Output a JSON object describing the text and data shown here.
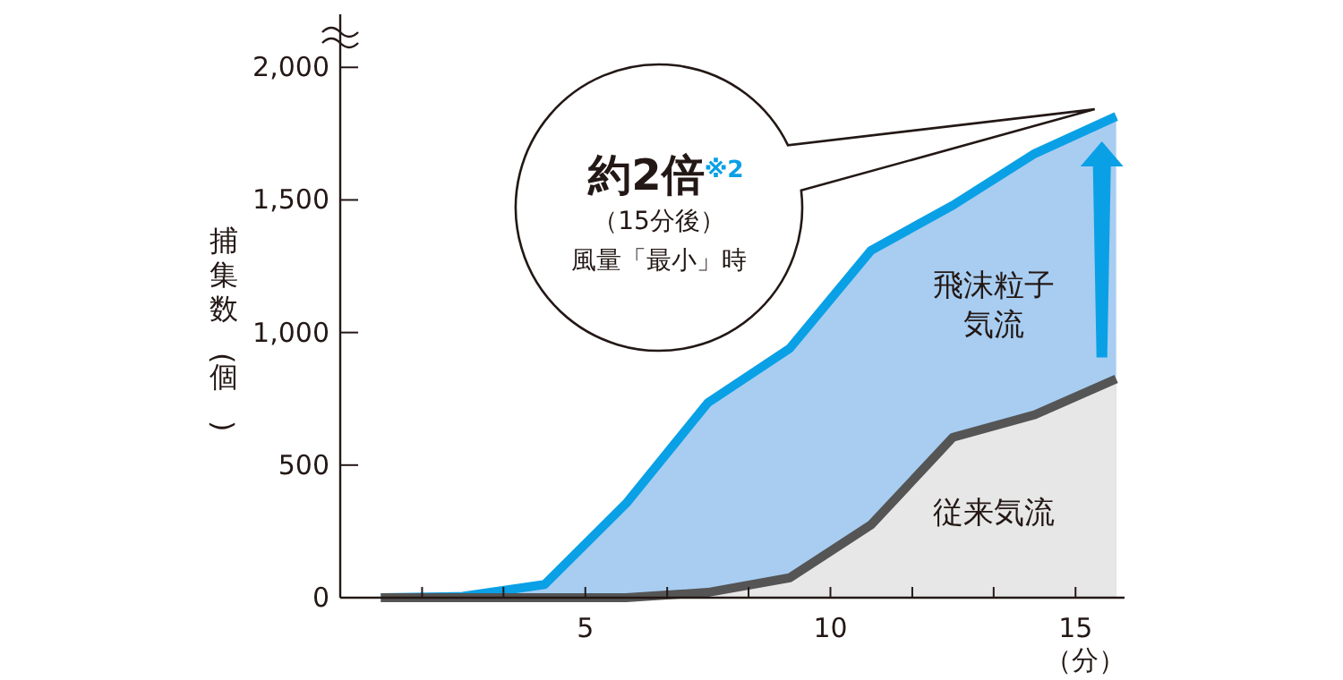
{
  "chart_data": {
    "type": "area",
    "ylabel": "捕集数(個)",
    "xlabel": "（分）",
    "x": [
      0.83,
      2.5,
      4.17,
      5.83,
      7.5,
      9.17,
      10.83,
      12.5,
      14.17,
      15.83
    ],
    "series": [
      {
        "name": "飛沫粒子気流",
        "color": "#0aa0e6",
        "values": [
          0,
          5,
          50,
          355,
          735,
          940,
          1310,
          1480,
          1675,
          1815
        ]
      },
      {
        "name": "従来気流",
        "color": "#555555",
        "values": [
          0,
          0,
          0,
          0,
          20,
          75,
          275,
          605,
          690,
          825
        ]
      }
    ],
    "xlim": [
      0,
      16
    ],
    "xticks": [
      {
        "value": 1.67,
        "label": null
      },
      {
        "value": 3.33,
        "label": null
      },
      5,
      {
        "value": 6.67,
        "label": null
      },
      {
        "value": 8.33,
        "label": null
      },
      10,
      {
        "value": 11.67,
        "label": null
      },
      {
        "value": 13.33,
        "label": null
      },
      15
    ],
    "ylim": [
      0,
      2200
    ],
    "yticks": [
      0,
      {
        "value": 500,
        "label": "500"
      },
      {
        "value": 1000,
        "label": "1,000"
      },
      {
        "value": 1500,
        "label": "1,500"
      },
      {
        "value": 2000,
        "label": "2,000"
      }
    ],
    "annotations": [
      "約2倍$^{※2}$",
      "（15分後）",
      "風量「最小」時"
    ],
    "grid": false
  }
}
